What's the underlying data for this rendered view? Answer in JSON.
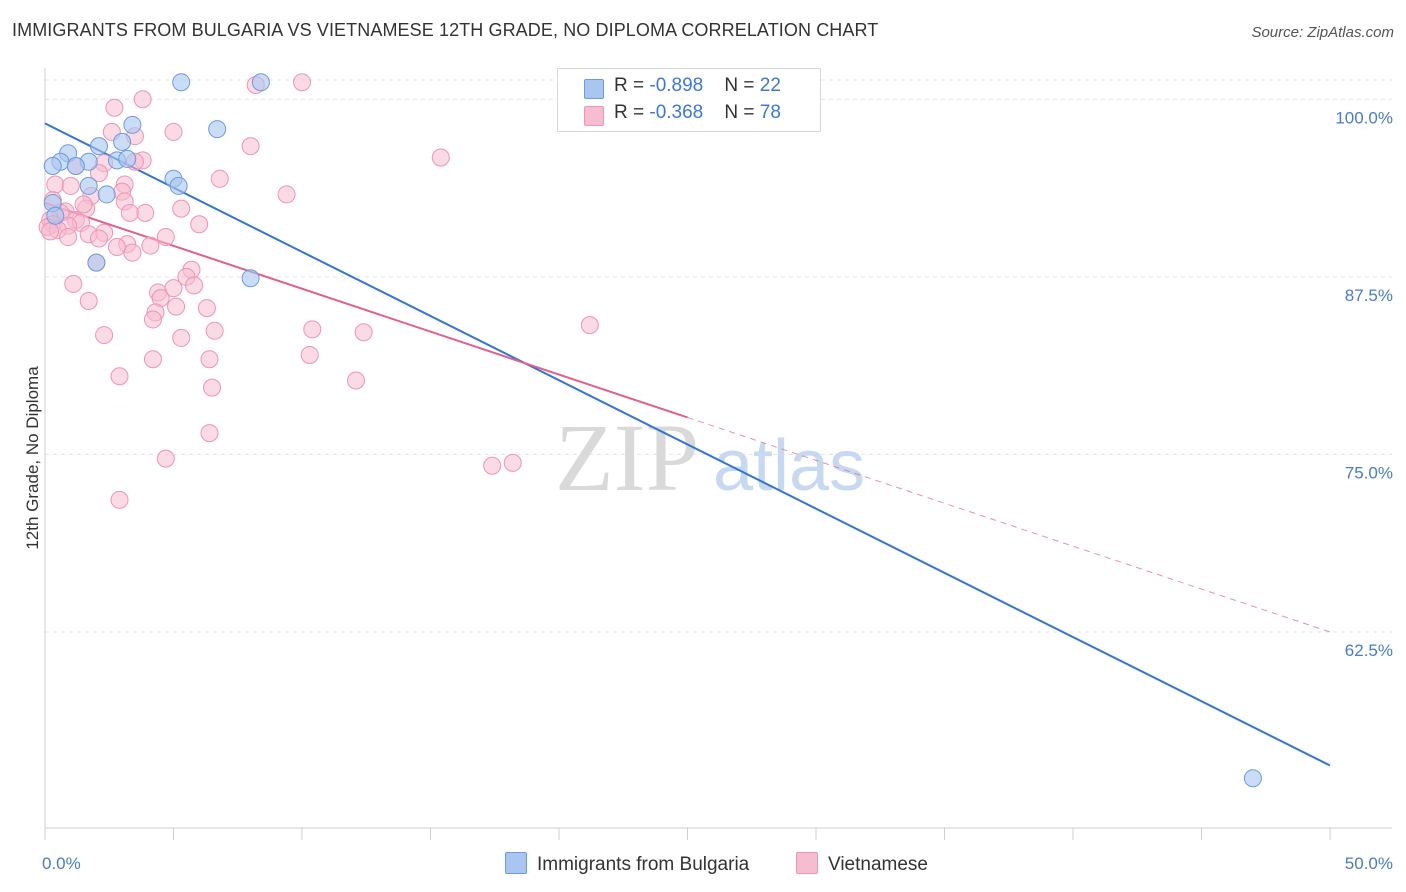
{
  "title": "IMMIGRANTS FROM BULGARIA VS VIETNAMESE 12TH GRADE, NO DIPLOMA CORRELATION CHART",
  "source": "Source: ZipAtlas.com",
  "watermark": {
    "zip": "ZIP",
    "atlas": "atlas"
  },
  "colors": {
    "blue_fill": "#a9c6f0",
    "blue_stroke": "#6b9be0",
    "blue_line": "#3474d4",
    "pink_fill": "#f6bcd0",
    "pink_stroke": "#ee94b4",
    "pink_line": "#e0608e",
    "tick": "#4a7cc9",
    "grid": "#e4e4e4"
  },
  "legend": {
    "rows": [
      {
        "r_label": "R = ",
        "r_value": "-0.898",
        "n_label": "N = ",
        "n_value": "22"
      },
      {
        "r_label": "R = ",
        "r_value": "-0.368",
        "n_label": "N = ",
        "n_value": "78"
      }
    ]
  },
  "bottom_legend": [
    {
      "label": "Immigrants from Bulgaria"
    },
    {
      "label": "Vietnamese"
    }
  ],
  "chart_data": {
    "type": "scatter",
    "title": "IMMIGRANTS FROM BULGARIA VS VIETNAMESE 12TH GRADE, NO DIPLOMA CORRELATION CHART",
    "xlabel": "",
    "ylabel": "12th Grade, No Diploma",
    "xlim": [
      0,
      50
    ],
    "ylim": [
      48.7,
      102.2
    ],
    "x_tick_labels": [
      "0.0%",
      "50.0%"
    ],
    "y_ticks": [
      100,
      87.5,
      75,
      62.5
    ],
    "y_tick_labels": [
      "100.0%",
      "87.5%",
      "75.0%",
      "62.5%"
    ],
    "series": [
      {
        "name": "Immigrants from Bulgaria",
        "color": "blue",
        "points": [
          [
            5.3,
            101.2
          ],
          [
            8.4,
            101.2
          ],
          [
            3.4,
            98.2
          ],
          [
            6.7,
            97.9
          ],
          [
            3.0,
            97.0
          ],
          [
            2.1,
            96.7
          ],
          [
            0.9,
            96.2
          ],
          [
            2.8,
            95.7
          ],
          [
            3.2,
            95.8
          ],
          [
            1.7,
            95.6
          ],
          [
            0.6,
            95.6
          ],
          [
            0.3,
            95.3
          ],
          [
            1.2,
            95.3
          ],
          [
            5.0,
            94.4
          ],
          [
            5.2,
            93.9
          ],
          [
            1.7,
            93.9
          ],
          [
            2.4,
            93.3
          ],
          [
            0.3,
            92.7
          ],
          [
            0.4,
            91.8
          ],
          [
            2.0,
            88.5
          ],
          [
            8.0,
            87.4
          ],
          [
            47.0,
            52.2
          ]
        ],
        "trend": {
          "x": [
            0,
            50
          ],
          "y": [
            98.3,
            53.1
          ]
        }
      },
      {
        "name": "Vietnamese",
        "color": "pink",
        "points": [
          [
            10.0,
            101.2
          ],
          [
            8.2,
            101.0
          ],
          [
            3.8,
            100.0
          ],
          [
            2.7,
            99.4
          ],
          [
            5.0,
            97.7
          ],
          [
            2.6,
            97.7
          ],
          [
            3.5,
            97.4
          ],
          [
            8.0,
            96.7
          ],
          [
            15.4,
            95.9
          ],
          [
            3.8,
            95.7
          ],
          [
            2.3,
            95.5
          ],
          [
            3.5,
            95.6
          ],
          [
            1.2,
            95.3
          ],
          [
            2.1,
            94.8
          ],
          [
            6.8,
            94.4
          ],
          [
            0.4,
            94.0
          ],
          [
            3.1,
            94.0
          ],
          [
            3.0,
            93.5
          ],
          [
            9.4,
            93.3
          ],
          [
            0.3,
            92.9
          ],
          [
            1.8,
            93.2
          ],
          [
            3.1,
            92.8
          ],
          [
            5.3,
            92.3
          ],
          [
            1.6,
            92.3
          ],
          [
            0.8,
            92.1
          ],
          [
            0.6,
            92.0
          ],
          [
            3.9,
            92.0
          ],
          [
            1.2,
            91.5
          ],
          [
            0.2,
            91.5
          ],
          [
            1.4,
            91.3
          ],
          [
            0.3,
            91.2
          ],
          [
            6.0,
            91.2
          ],
          [
            0.1,
            91.0
          ],
          [
            0.9,
            91.1
          ],
          [
            0.5,
            90.8
          ],
          [
            0.2,
            90.7
          ],
          [
            2.3,
            90.6
          ],
          [
            1.7,
            90.5
          ],
          [
            0.9,
            90.3
          ],
          [
            4.7,
            90.3
          ],
          [
            2.1,
            90.2
          ],
          [
            4.1,
            89.7
          ],
          [
            3.2,
            89.8
          ],
          [
            3.4,
            89.2
          ],
          [
            2.0,
            88.5
          ],
          [
            5.7,
            88.0
          ],
          [
            5.5,
            87.5
          ],
          [
            1.1,
            87.0
          ],
          [
            5.8,
            86.9
          ],
          [
            4.4,
            86.4
          ],
          [
            5.0,
            86.7
          ],
          [
            4.5,
            86.0
          ],
          [
            1.7,
            85.8
          ],
          [
            5.1,
            85.4
          ],
          [
            4.3,
            85.0
          ],
          [
            6.3,
            85.3
          ],
          [
            4.2,
            84.5
          ],
          [
            10.4,
            83.8
          ],
          [
            6.6,
            83.7
          ],
          [
            12.4,
            83.6
          ],
          [
            21.2,
            84.1
          ],
          [
            2.3,
            83.4
          ],
          [
            5.3,
            83.2
          ],
          [
            10.3,
            82.0
          ],
          [
            4.2,
            81.7
          ],
          [
            6.4,
            81.7
          ],
          [
            2.9,
            80.5
          ],
          [
            12.1,
            80.2
          ],
          [
            6.5,
            79.7
          ],
          [
            6.4,
            76.5
          ],
          [
            4.7,
            74.7
          ],
          [
            18.2,
            74.4
          ],
          [
            17.4,
            74.2
          ],
          [
            2.9,
            71.8
          ],
          [
            1.0,
            93.9
          ],
          [
            3.3,
            92.0
          ],
          [
            1.5,
            92.6
          ],
          [
            2.8,
            89.6
          ]
        ],
        "trend": {
          "x": [
            0,
            25
          ],
          "y": [
            92.7,
            77.6
          ]
        },
        "trend_dashed": {
          "x": [
            25,
            50
          ],
          "y": [
            77.6,
            62.5
          ]
        }
      }
    ]
  }
}
